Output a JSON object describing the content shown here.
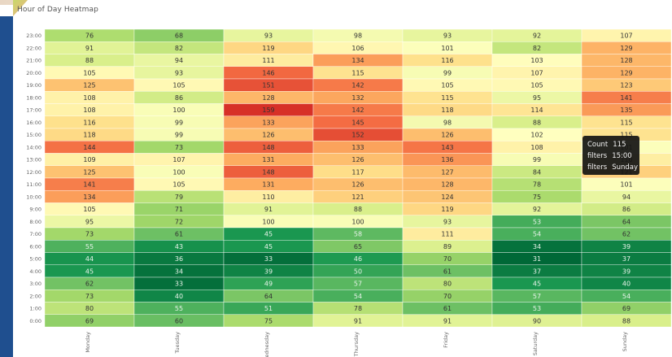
{
  "panel": {
    "title": "Hour of Day Heatmap"
  },
  "tooltip": {
    "rows": [
      {
        "key": "Count",
        "value": "115"
      },
      {
        "key": "filters",
        "value": "15:00"
      },
      {
        "key": "filters",
        "value": "Sunday"
      }
    ]
  },
  "chart_data": {
    "type": "heatmap",
    "title": "Hour of Day Heatmap",
    "x_categories": [
      "Monday",
      "Tuesday",
      "Wednesday",
      "Thursday",
      "Friday",
      "Saturday",
      "Sunday"
    ],
    "y_categories": [
      "23:00",
      "22:00",
      "21:00",
      "20:00",
      "19:00",
      "18:00",
      "17:00",
      "16:00",
      "15:00",
      "14:00",
      "13:00",
      "12:00",
      "11:00",
      "10:00",
      "9:00",
      "8:00",
      "7:00",
      "6:00",
      "5:00",
      "4:00",
      "3:00",
      "2:00",
      "1:00",
      "0:00"
    ],
    "values": [
      [
        76,
        68,
        93,
        98,
        93,
        92,
        107
      ],
      [
        91,
        82,
        119,
        106,
        101,
        82,
        129
      ],
      [
        88,
        94,
        111,
        134,
        116,
        103,
        128
      ],
      [
        105,
        93,
        146,
        115,
        99,
        107,
        129
      ],
      [
        125,
        105,
        151,
        142,
        105,
        105,
        123
      ],
      [
        108,
        86,
        128,
        132,
        115,
        95,
        141
      ],
      [
        108,
        100,
        159,
        142,
        118,
        114,
        135
      ],
      [
        116,
        99,
        133,
        145,
        98,
        88,
        115
      ],
      [
        118,
        99,
        126,
        152,
        126,
        102,
        115
      ],
      [
        144,
        73,
        148,
        133,
        143,
        108,
        101
      ],
      [
        109,
        107,
        131,
        126,
        136,
        99,
        110
      ],
      [
        125,
        100,
        148,
        117,
        127,
        84,
        121
      ],
      [
        141,
        105,
        131,
        126,
        128,
        78,
        101
      ],
      [
        134,
        79,
        110,
        121,
        124,
        75,
        94
      ],
      [
        105,
        71,
        91,
        88,
        119,
        92,
        86
      ],
      [
        95,
        72,
        100,
        100,
        93,
        53,
        64
      ],
      [
        73,
        61,
        45,
        58,
        111,
        54,
        62
      ],
      [
        55,
        43,
        45,
        65,
        89,
        34,
        39
      ],
      [
        44,
        36,
        33,
        46,
        70,
        31,
        37
      ],
      [
        45,
        34,
        39,
        50,
        61,
        37,
        39
      ],
      [
        62,
        33,
        49,
        57,
        80,
        45,
        40
      ],
      [
        73,
        40,
        64,
        54,
        70,
        57,
        54
      ],
      [
        80,
        55,
        51,
        78,
        61,
        53,
        69
      ],
      [
        69,
        60,
        75,
        91,
        91,
        90,
        88
      ]
    ],
    "color_scale": [
      "#006837",
      "#1a9850",
      "#66bd63",
      "#a6d96a",
      "#d9ef8b",
      "#ffffbf",
      "#fee08b",
      "#fdae61",
      "#f46d43",
      "#d73027"
    ]
  }
}
